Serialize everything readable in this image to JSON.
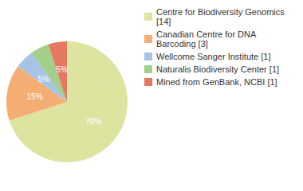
{
  "chart_data": {
    "type": "pie",
    "categories": [
      "Centre for Biodiversity Genomics [14]",
      "Canadian Centre for DNA Barcoding [3]",
      "Wellcome Sanger Institute [1]",
      "Naturalis Biodiversity Center [1]",
      "Mined from GenBank, NCBI [1]"
    ],
    "values": [
      70,
      15,
      5,
      5,
      5
    ],
    "value_labels": [
      "70%",
      "15%",
      "5%",
      "5%",
      "5%"
    ],
    "colors": [
      "#dde4a0",
      "#f4ae74",
      "#a6c4e6",
      "#a3cf8b",
      "#e57860"
    ],
    "data_labels": true,
    "legend": "right"
  }
}
